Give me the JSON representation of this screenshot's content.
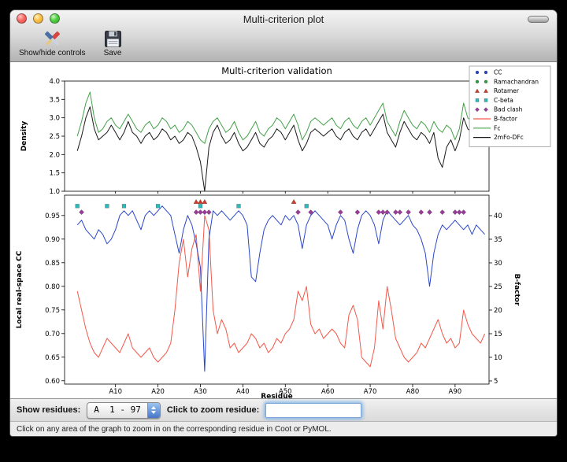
{
  "window": {
    "title": "Multi-criterion plot",
    "toolbar": [
      {
        "label": "Show/hide controls",
        "icon": "tools-icon"
      },
      {
        "label": "Save",
        "icon": "save-icon"
      }
    ],
    "controls": {
      "show_residues_label": "Show residues:",
      "chain_range_value": "A  1 - 97",
      "zoom_label": "Click to zoom residue:",
      "zoom_input_value": ""
    },
    "status_text": "Click on any area of the graph to zoom in on the corresponding residue in Coot or PyMOL."
  },
  "chart_data": {
    "type": "line",
    "title": "Multi-criterion validation",
    "grid": false,
    "legend_position": "upper right",
    "x": {
      "label": "Residue",
      "range": [
        -2,
        98
      ],
      "ticks": [
        10,
        20,
        30,
        40,
        50,
        60,
        70,
        80,
        90
      ],
      "tick_labels": [
        "A10",
        "A20",
        "A30",
        "A40",
        "A50",
        "A60",
        "A70",
        "A80",
        "A90"
      ],
      "residues_start": 1,
      "residues_end": 97
    },
    "top": {
      "ylabel": "Density",
      "ylim": [
        1.0,
        4.0
      ],
      "yticks": [
        1.0,
        1.5,
        2.0,
        2.5,
        3.0,
        3.5,
        4.0
      ],
      "ytick_labels": [
        "1.0",
        "1.5",
        "2.0",
        "2.5",
        "3.0",
        "3.5",
        "4.0"
      ],
      "series": [
        {
          "name": "Fc",
          "color": "#44a048",
          "values": [
            2.5,
            2.9,
            3.4,
            3.7,
            3.0,
            2.6,
            2.7,
            2.9,
            3.0,
            2.8,
            2.7,
            2.9,
            3.1,
            2.9,
            2.7,
            2.6,
            2.8,
            2.9,
            2.7,
            2.8,
            3.0,
            2.9,
            2.7,
            2.8,
            2.6,
            2.7,
            2.9,
            2.8,
            2.6,
            2.4,
            2.3,
            2.7,
            2.9,
            3.0,
            2.8,
            2.6,
            2.7,
            2.9,
            2.6,
            2.4,
            2.5,
            2.7,
            2.9,
            2.6,
            2.5,
            2.7,
            2.8,
            3.0,
            2.9,
            2.7,
            2.9,
            3.1,
            2.8,
            2.4,
            2.6,
            2.9,
            3.0,
            2.9,
            2.8,
            2.9,
            3.0,
            2.8,
            2.7,
            2.9,
            3.0,
            2.8,
            2.7,
            2.9,
            3.0,
            2.8,
            3.0,
            3.2,
            3.4,
            2.9,
            2.7,
            2.5,
            2.9,
            3.2,
            3.0,
            2.8,
            2.7,
            2.9,
            2.8,
            2.6,
            2.9,
            2.7,
            2.6,
            2.8,
            2.7,
            2.4,
            2.7,
            3.4,
            3.0,
            2.9,
            3.3,
            3.5,
            3.0
          ]
        },
        {
          "name": "2mFo-DFc",
          "color": "#1a1a1a",
          "values": [
            2.1,
            2.5,
            3.0,
            3.3,
            2.7,
            2.4,
            2.5,
            2.6,
            2.8,
            2.6,
            2.4,
            2.6,
            2.9,
            2.6,
            2.5,
            2.3,
            2.5,
            2.6,
            2.4,
            2.5,
            2.7,
            2.6,
            2.4,
            2.5,
            2.3,
            2.4,
            2.6,
            2.5,
            2.2,
            1.8,
            1.0,
            2.2,
            2.6,
            2.8,
            2.5,
            2.3,
            2.4,
            2.6,
            2.3,
            2.1,
            2.2,
            2.4,
            2.6,
            2.3,
            2.2,
            2.4,
            2.5,
            2.7,
            2.6,
            2.4,
            2.6,
            2.8,
            2.4,
            2.1,
            2.3,
            2.6,
            2.7,
            2.6,
            2.5,
            2.6,
            2.7,
            2.5,
            2.4,
            2.6,
            2.7,
            2.5,
            2.4,
            2.6,
            2.7,
            2.5,
            2.7,
            2.9,
            3.1,
            2.6,
            2.4,
            2.2,
            2.6,
            2.9,
            2.7,
            2.5,
            2.4,
            2.6,
            2.5,
            2.3,
            2.6,
            1.9,
            1.65,
            2.2,
            2.4,
            2.1,
            2.4,
            3.0,
            2.7,
            2.6,
            2.9,
            3.0,
            2.7
          ]
        }
      ]
    },
    "bottom": {
      "ylabel_left": "Local real-space CC",
      "ylim_left": [
        0.593,
        0.993
      ],
      "yticks_left": [
        0.6,
        0.65,
        0.7,
        0.75,
        0.8,
        0.85,
        0.9,
        0.95
      ],
      "ytick_labels_left": [
        "0.60",
        "0.65",
        "0.70",
        "0.75",
        "0.80",
        "0.85",
        "0.90",
        "0.95"
      ],
      "ylabel_right": "B-factor",
      "ylim_right": [
        4.33,
        44.33
      ],
      "yticks_right": [
        5,
        10,
        15,
        20,
        25,
        30,
        35,
        40
      ],
      "ytick_labels_right": [
        "5",
        "10",
        "15",
        "20",
        "25",
        "30",
        "35",
        "40"
      ],
      "series": [
        {
          "name": "B-factor",
          "axis": "right",
          "color": "#f2594b",
          "values": [
            24,
            20,
            16,
            13,
            11,
            10,
            12,
            14,
            13,
            12,
            11,
            13,
            15,
            12,
            11,
            10,
            11,
            12,
            10,
            9,
            10,
            11,
            13,
            20,
            30,
            35,
            27,
            33,
            36,
            24,
            40,
            37,
            20,
            15,
            18,
            16,
            12,
            13,
            11,
            12,
            13,
            15,
            14,
            12,
            13,
            11,
            12,
            14,
            13,
            15,
            16,
            18,
            24,
            22,
            25,
            17,
            15,
            16,
            14,
            15,
            16,
            15,
            13,
            12,
            19,
            21,
            18,
            10,
            9,
            8,
            12,
            22,
            16,
            25,
            20,
            14,
            12,
            10,
            9,
            10,
            11,
            13,
            12,
            14,
            16,
            18,
            15,
            13,
            14,
            12,
            13,
            20,
            17,
            15,
            14,
            13,
            15
          ]
        },
        {
          "name": "CC",
          "axis": "left",
          "color": "#2a46c8",
          "values": [
            0.93,
            0.94,
            0.92,
            0.91,
            0.9,
            0.92,
            0.91,
            0.89,
            0.9,
            0.92,
            0.95,
            0.96,
            0.95,
            0.96,
            0.94,
            0.92,
            0.95,
            0.96,
            0.95,
            0.96,
            0.97,
            0.96,
            0.95,
            0.91,
            0.87,
            0.92,
            0.95,
            0.93,
            0.89,
            0.84,
            0.62,
            0.9,
            0.96,
            0.95,
            0.96,
            0.95,
            0.94,
            0.95,
            0.96,
            0.95,
            0.93,
            0.82,
            0.81,
            0.87,
            0.92,
            0.94,
            0.95,
            0.94,
            0.93,
            0.95,
            0.94,
            0.95,
            0.93,
            0.88,
            0.93,
            0.95,
            0.96,
            0.95,
            0.94,
            0.93,
            0.9,
            0.93,
            0.95,
            0.94,
            0.9,
            0.87,
            0.92,
            0.95,
            0.96,
            0.95,
            0.93,
            0.89,
            0.94,
            0.96,
            0.95,
            0.94,
            0.93,
            0.94,
            0.95,
            0.93,
            0.92,
            0.9,
            0.87,
            0.8,
            0.87,
            0.91,
            0.93,
            0.92,
            0.93,
            0.94,
            0.93,
            0.92,
            0.93,
            0.91,
            0.93,
            0.92,
            0.91
          ]
        }
      ],
      "markers": [
        {
          "name": "Ramachandran",
          "marker": "circle",
          "color": "#2e9e3e",
          "y": 0.986,
          "residues": []
        },
        {
          "name": "Rotamer",
          "marker": "triangle",
          "color": "#d23b28",
          "y": 0.979,
          "residues": [
            29,
            30,
            31,
            52
          ]
        },
        {
          "name": "C-beta",
          "marker": "square",
          "color": "#2fb8b8",
          "y": 0.97,
          "residues": [
            1,
            8,
            12,
            20,
            30,
            39,
            55
          ]
        },
        {
          "name": "Bad clash",
          "marker": "diamond",
          "color": "#9a3d9a",
          "y": 0.957,
          "residues": [
            2,
            29,
            30,
            31,
            32,
            53,
            56,
            63,
            67,
            72,
            73,
            74,
            76,
            77,
            79,
            82,
            84,
            87,
            90,
            91,
            92
          ]
        }
      ]
    },
    "legend": [
      {
        "label": "CC",
        "display": "markers",
        "marker": "circle",
        "color": "#2a46c8"
      },
      {
        "label": "Ramachandran",
        "display": "markers",
        "marker": "circle",
        "color": "#2e9e3e"
      },
      {
        "label": "Rotamer",
        "display": "markers",
        "marker": "triangle",
        "color": "#d23b28"
      },
      {
        "label": "C-beta",
        "display": "markers",
        "marker": "square",
        "color": "#2fb8b8"
      },
      {
        "label": "Bad clash",
        "display": "markers",
        "marker": "diamond",
        "color": "#9a3d9a"
      },
      {
        "label": "B-factor",
        "display": "line",
        "color": "#f2594b"
      },
      {
        "label": "Fc",
        "display": "line",
        "color": "#44a048"
      },
      {
        "label": "2mFo-DFc",
        "display": "line",
        "color": "#1a1a1a"
      }
    ]
  }
}
